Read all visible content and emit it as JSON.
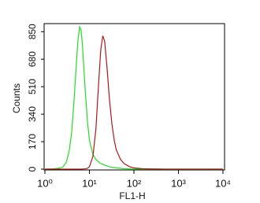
{
  "chart_data": {
    "type": "line",
    "x_label": "FL1-H",
    "y_label": "Counts",
    "log_x": true,
    "x": [
      1,
      1.5,
      2,
      2.5,
      3,
      3.5,
      4,
      4.5,
      5,
      5.5,
      6,
      6.5,
      7,
      8,
      9,
      10,
      12,
      14,
      16,
      18,
      20,
      22,
      25,
      28,
      32,
      36,
      40,
      50,
      60,
      80,
      100,
      150,
      200,
      500,
      1000,
      3000,
      10000
    ],
    "series": [
      {
        "color": "#22dd22",
        "values": [
          0,
          2,
          5,
          12,
          40,
          110,
          230,
          420,
          620,
          790,
          880,
          860,
          760,
          500,
          300,
          180,
          90,
          60,
          45,
          35,
          30,
          25,
          20,
          15,
          12,
          10,
          8,
          5,
          3,
          2,
          1,
          0,
          0,
          0,
          0,
          0,
          0
        ]
      },
      {
        "color": "#b01818",
        "values": [
          0,
          0,
          0,
          0,
          0,
          0,
          0,
          0,
          0,
          0,
          0,
          0,
          1,
          2,
          5,
          15,
          80,
          250,
          520,
          740,
          825,
          790,
          620,
          440,
          280,
          180,
          120,
          60,
          35,
          15,
          8,
          3,
          2,
          0,
          0,
          0,
          0
        ]
      }
    ],
    "xlim": [
      1,
      10000
    ],
    "xticks": [
      {
        "value": 1,
        "label": "10⁰"
      },
      {
        "value": 10,
        "label": "10¹"
      },
      {
        "value": 100,
        "label": "10²"
      },
      {
        "value": 1000,
        "label": "10³"
      },
      {
        "value": 10000,
        "label": "10⁴"
      }
    ],
    "ylim": [
      0,
      900
    ],
    "yticks": [
      0,
      170,
      340,
      510,
      680,
      850
    ]
  }
}
